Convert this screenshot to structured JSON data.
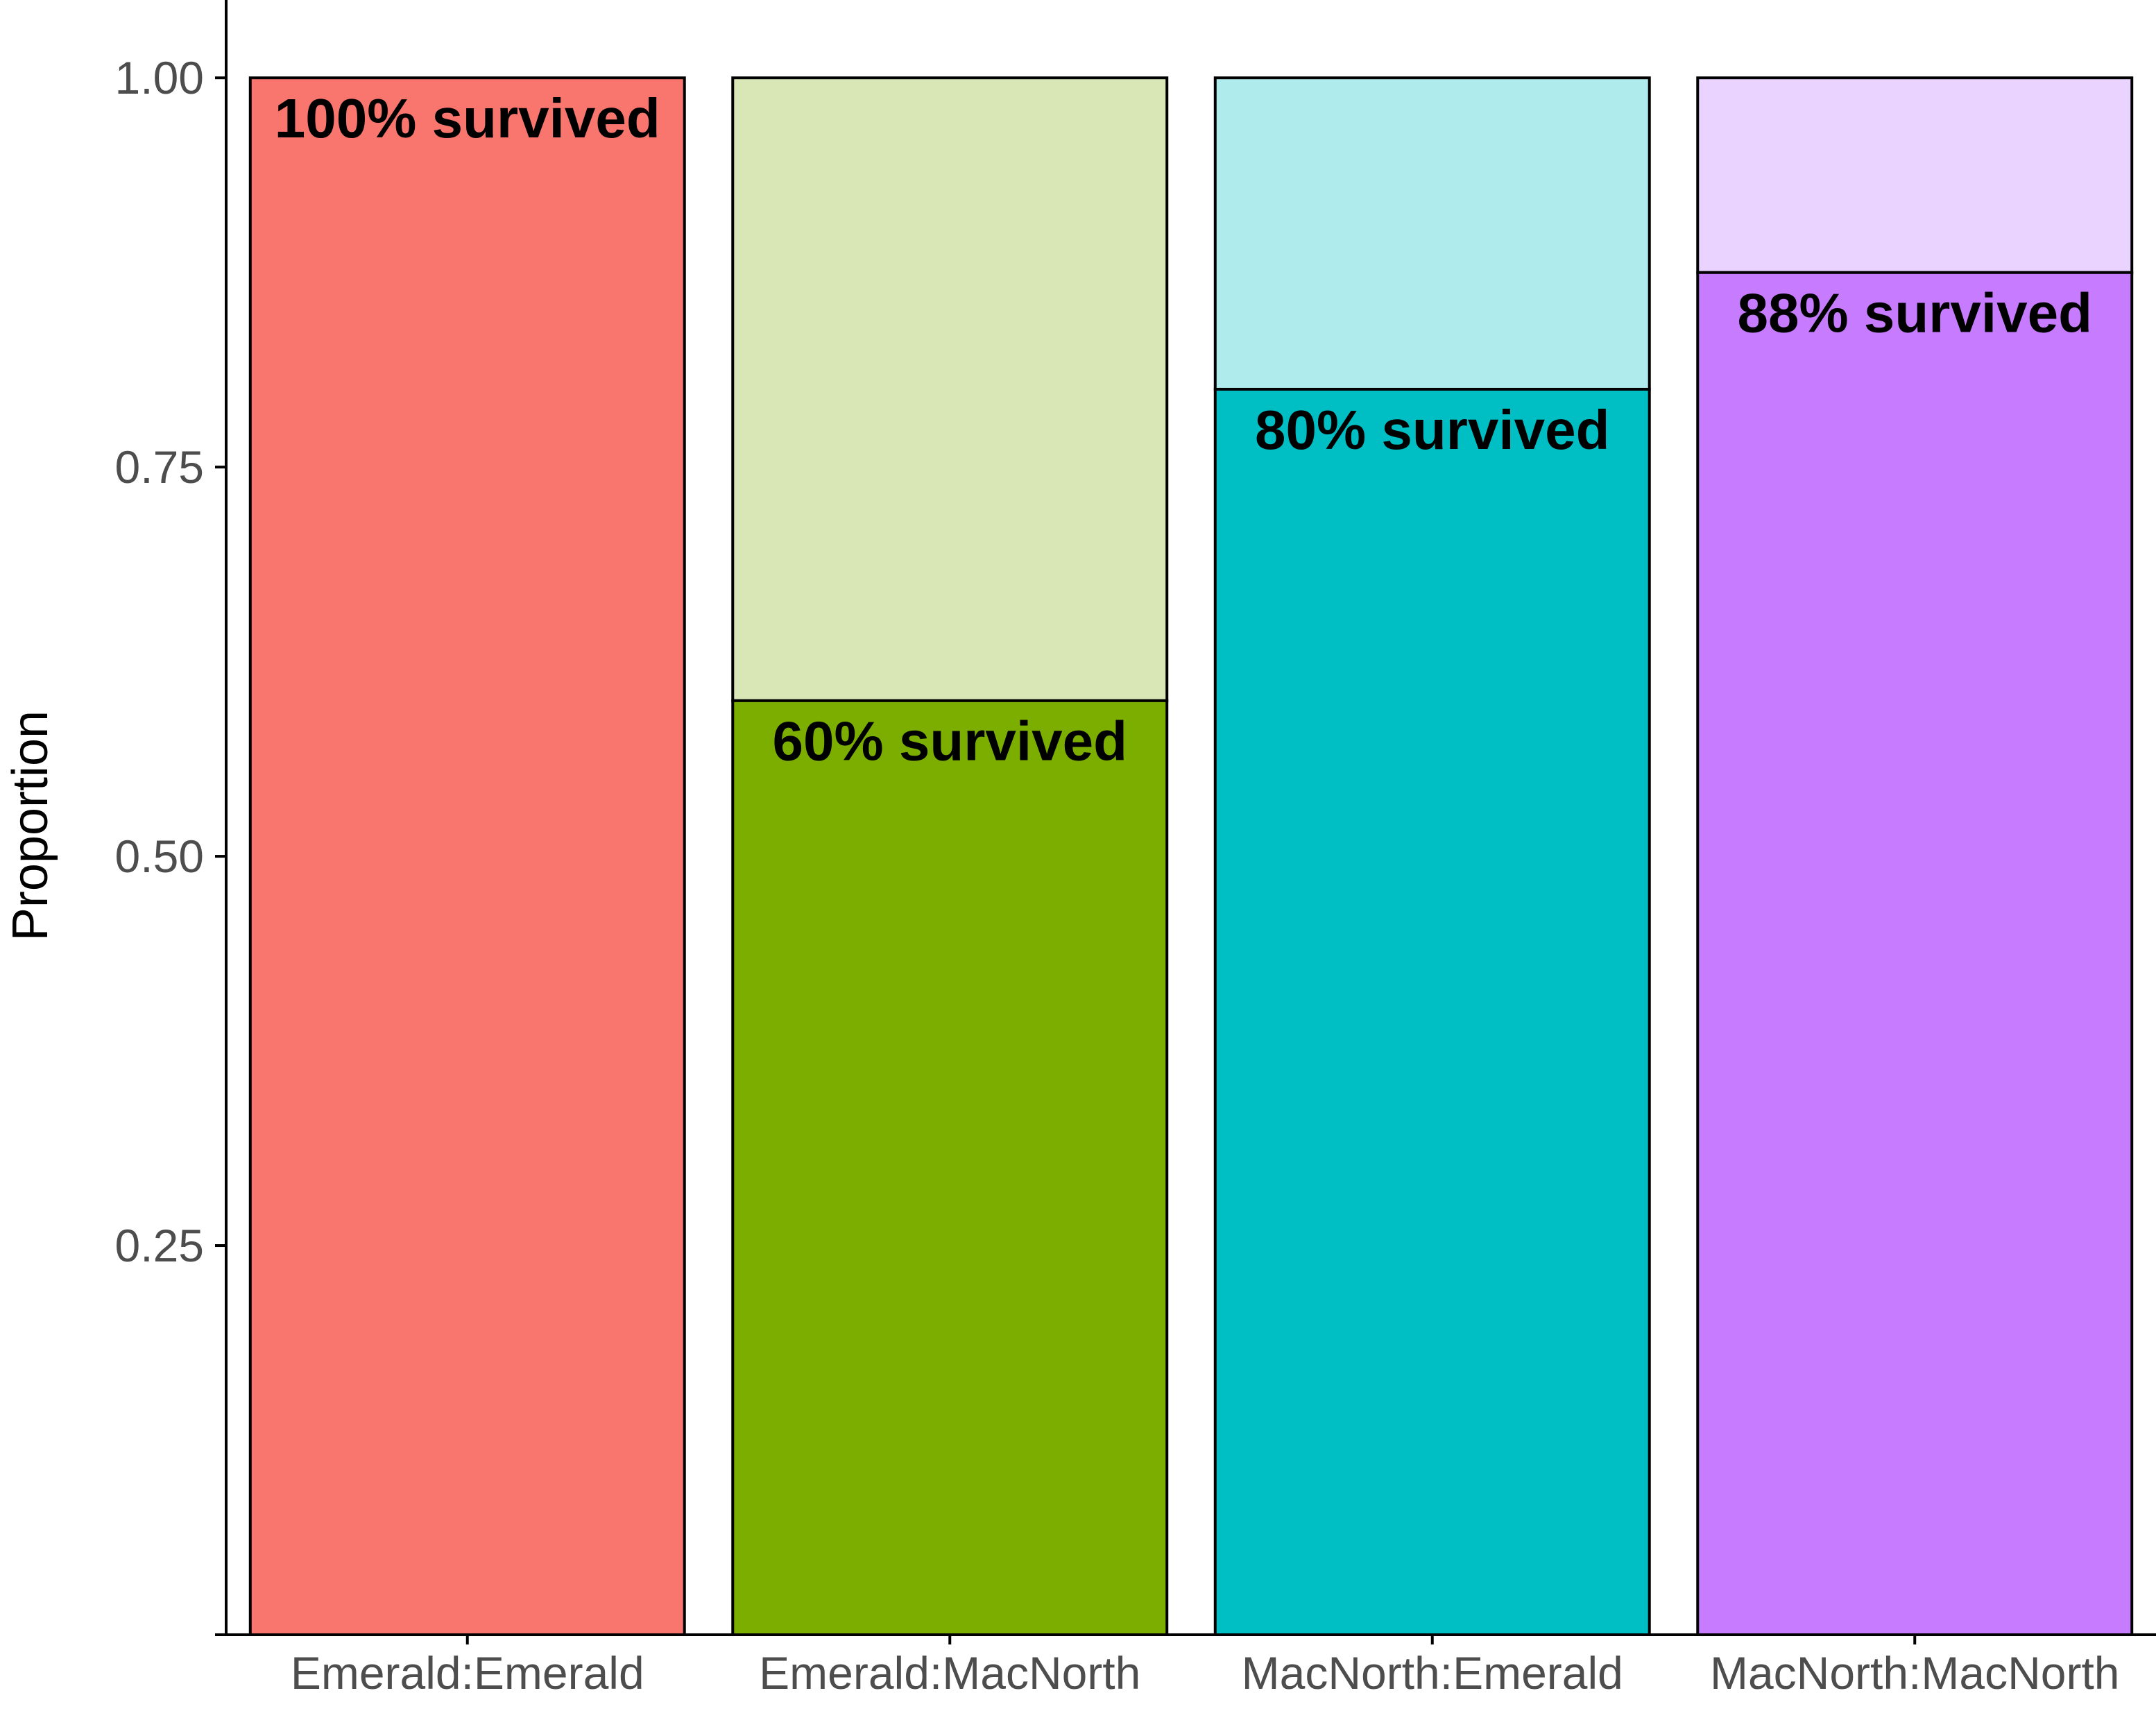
{
  "chart_data": {
    "type": "bar",
    "stacked": true,
    "title": "",
    "xlabel": "",
    "ylabel": "Proportion",
    "ylim": [
      0,
      1.05
    ],
    "yticks": [
      "0.25",
      "0.50",
      "0.75",
      "1.00"
    ],
    "grid": false,
    "legend": "none",
    "categories": [
      "Emerald:Emerald",
      "Emerald:MacNorth",
      "MacNorth:Emerald",
      "MacNorth:MacNorth"
    ],
    "series": [
      {
        "values": [
          1.0,
          0.6,
          0.8,
          0.875
        ],
        "colors": [
          "#f8766d",
          "#7cae00",
          "#00bfc4",
          "#c77cff"
        ]
      },
      {
        "values": [
          0.0,
          0.4,
          0.2,
          0.125
        ],
        "colors": [
          "#fbbab6",
          "#d9e6b6",
          "#afebec",
          "#ead4ff"
        ]
      }
    ],
    "annotations": [
      "100% survived",
      "60% survived",
      "80% survived",
      "88% survived"
    ]
  }
}
